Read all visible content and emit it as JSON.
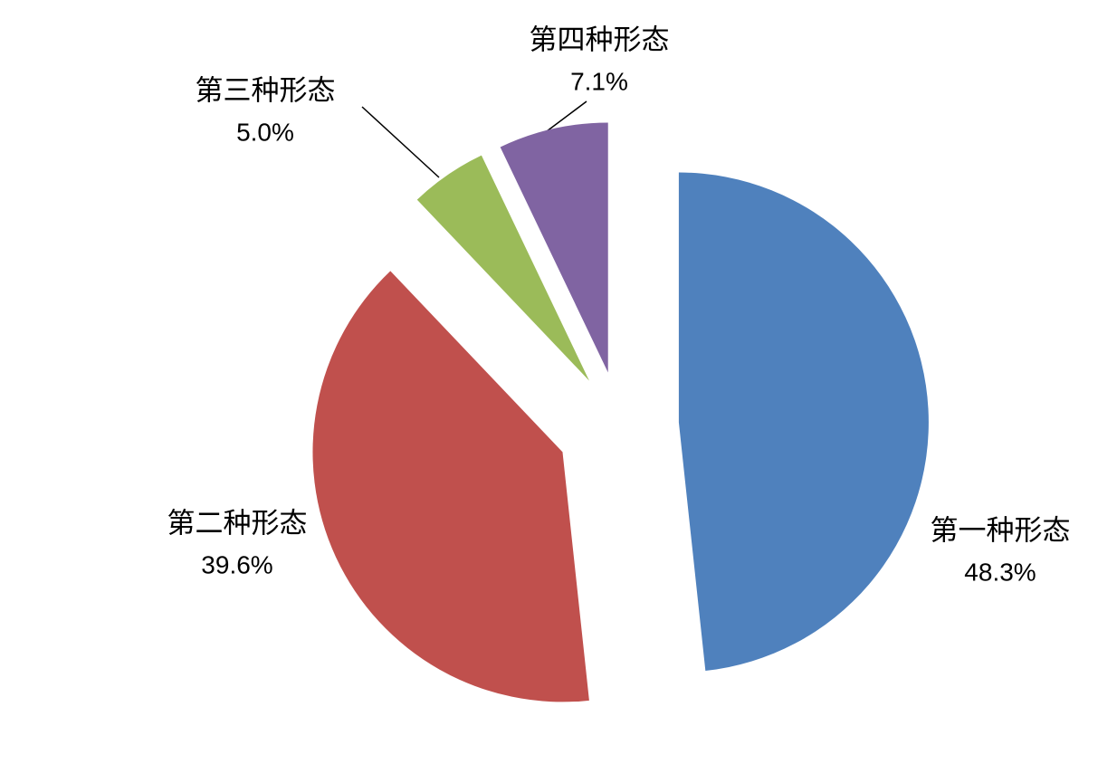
{
  "chart_data": {
    "type": "pie",
    "categories": [
      "第一种形态",
      "第二种形态",
      "第三种形态",
      "第四种形态"
    ],
    "values": [
      48.3,
      39.6,
      5.0,
      7.1
    ],
    "value_labels": [
      "48.3%",
      "39.6%",
      "5.0%",
      "7.1%"
    ],
    "colors": [
      "#4f81bd",
      "#c0504d",
      "#9bbb59",
      "#8064a2"
    ]
  }
}
